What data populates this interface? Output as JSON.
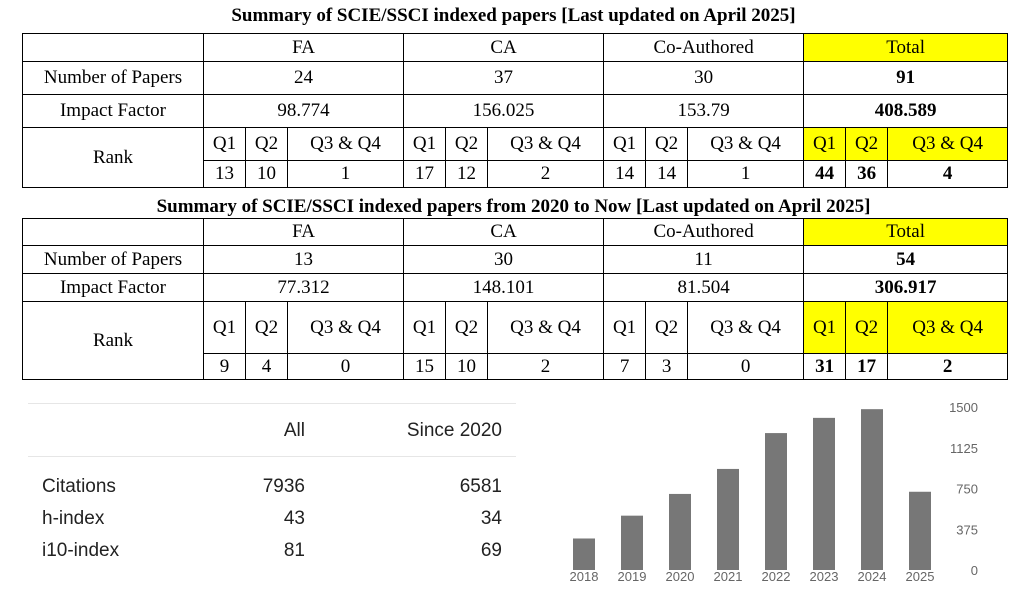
{
  "table1": {
    "title": "Summary of SCIE/SSCI indexed papers [Last updated on April 2025]",
    "headers": [
      "FA",
      "CA",
      "Co-Authored",
      "Total"
    ],
    "papers_label": "Number of Papers",
    "papers": [
      "24",
      "37",
      "30",
      "91"
    ],
    "impact_label": "Impact Factor",
    "impact": [
      "98.774",
      "156.025",
      "153.79",
      "408.589"
    ],
    "rank_label": "Rank",
    "rank_headers": [
      "Q1",
      "Q2",
      "Q3 & Q4",
      "Q1",
      "Q2",
      "Q3 & Q4",
      "Q1",
      "Q2",
      "Q3 & Q4",
      "Q1",
      "Q2",
      "Q3 & Q4"
    ],
    "rank_values": [
      "13",
      "10",
      "1",
      "17",
      "12",
      "2",
      "14",
      "14",
      "1",
      "44",
      "36",
      "4"
    ]
  },
  "table2": {
    "title": "Summary of SCIE/SSCI indexed papers from 2020 to Now [Last updated on April 2025]",
    "headers": [
      "FA",
      "CA",
      "Co-Authored",
      "Total"
    ],
    "papers_label": "Number of Papers",
    "papers": [
      "13",
      "30",
      "11",
      "54"
    ],
    "impact_label": "Impact Factor",
    "impact": [
      "77.312",
      "148.101",
      "81.504",
      "306.917"
    ],
    "rank_label": "Rank",
    "rank_headers": [
      "Q1",
      "Q2",
      "Q3 & Q4",
      "Q1",
      "Q2",
      "Q3 & Q4",
      "Q1",
      "Q2",
      "Q3 & Q4",
      "Q1",
      "Q2",
      "Q3 & Q4"
    ],
    "rank_values": [
      "9",
      "4",
      "0",
      "15",
      "10",
      "2",
      "7",
      "3",
      "0",
      "31",
      "17",
      "2"
    ]
  },
  "citations": {
    "col_all": "All",
    "col_since": "Since 2020",
    "rows": [
      {
        "label": "Citations",
        "all": "7936",
        "since": "6581"
      },
      {
        "label": "h-index",
        "all": "43",
        "since": "34"
      },
      {
        "label": "i10-index",
        "all": "81",
        "since": "69"
      }
    ]
  },
  "chart_data": {
    "type": "bar",
    "categories": [
      "2018",
      "2019",
      "2020",
      "2021",
      "2022",
      "2023",
      "2024",
      "2025"
    ],
    "values": [
      290,
      500,
      700,
      930,
      1260,
      1400,
      1480,
      720
    ],
    "yticks": [
      "0",
      "375",
      "750",
      "1125",
      "1500"
    ],
    "ylim": [
      0,
      1500
    ],
    "bar_color": "#777777",
    "title": "",
    "xlabel": "",
    "ylabel": ""
  }
}
